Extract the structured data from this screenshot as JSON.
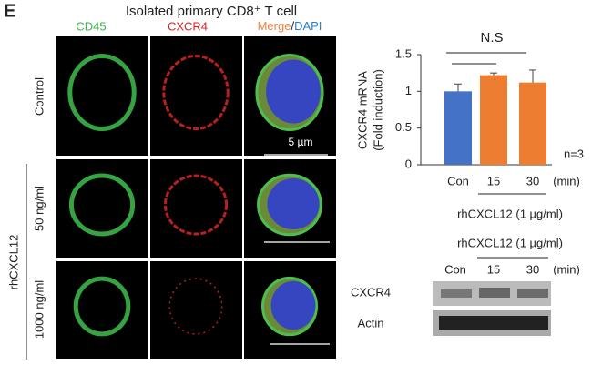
{
  "panel_label": "E",
  "microscopy": {
    "title": "Isolated primary CD8⁺ T cell",
    "columns": [
      "CD45",
      "CXCR4"
    ],
    "merge": "Merge",
    "slash": "/",
    "dapi": "DAPI",
    "rows": [
      "Control",
      "50 ng/ml",
      "1000 ng/ml"
    ],
    "treatment": "rhCXCL12",
    "scale_bar": "5 µm"
  },
  "chart_data": {
    "type": "bar",
    "ylabel": [
      "CXCR4 mRNA",
      "(Fold induction)"
    ],
    "categories": [
      "Con",
      "15",
      "30"
    ],
    "x_unit": "(min)",
    "xlabel": "rhCXCL12 (1 µg/ml)",
    "values": [
      1.0,
      1.22,
      1.12
    ],
    "errors": [
      0.1,
      0.03,
      0.17
    ],
    "colors": [
      "#4472c4",
      "#ed7d31",
      "#ed7d31"
    ],
    "ylim": [
      0,
      1.5
    ],
    "yticks": [
      0,
      0.5,
      1,
      1.5
    ],
    "significance": "N.S",
    "n": "n=3"
  },
  "blot": {
    "treatment": "rhCXCL12 (1 µg/ml)",
    "lanes": [
      "Con",
      "15",
      "30"
    ],
    "unit": "(min)",
    "bands": [
      "CXCR4",
      "Actin"
    ]
  }
}
